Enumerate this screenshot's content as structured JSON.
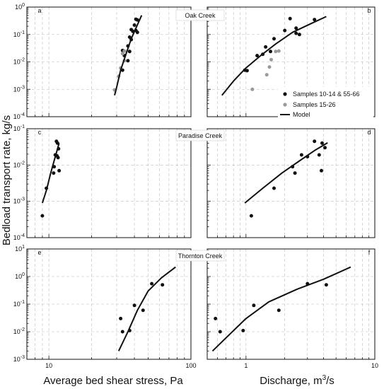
{
  "figure": {
    "ylabel": "Bedload transport rate, kg/s",
    "xlabel_left": "Average bed shear stress, Pa",
    "xlabel_right_prefix": "Discharge, m",
    "xlabel_right_sup": "3",
    "xlabel_right_suffix": "/s",
    "legend": [
      {
        "label": "Samples 10-14 & 55-66",
        "marker": "dot",
        "color": "#111111"
      },
      {
        "label": "Samples 15-26",
        "marker": "dot",
        "color": "#9a9a9a"
      },
      {
        "label": "Model",
        "marker": "line",
        "color": "#111111"
      }
    ]
  },
  "chart_data": [
    {
      "id": "a",
      "panel_letter": "a",
      "creek": "",
      "type": "scatter",
      "xscale": "log",
      "yscale": "log",
      "xlim": [
        7,
        100
      ],
      "ylim": [
        0.0001,
        1
      ],
      "xticklabels": [],
      "yticklabels": [
        "10^0",
        "10^-1",
        "10^-2",
        "10^-3",
        "10^-4"
      ],
      "series": [
        {
          "name": "Samples 10-14 & 55-66",
          "color": "#111111",
          "points": [
            [
              41,
              0.36
            ],
            [
              42,
              0.34
            ],
            [
              40,
              0.22
            ],
            [
              39,
              0.13
            ],
            [
              41,
              0.14
            ],
            [
              42,
              0.12
            ],
            [
              38,
              0.15
            ],
            [
              37,
              0.08
            ],
            [
              38,
              0.065
            ],
            [
              36,
              0.038
            ],
            [
              34,
              0.017
            ],
            [
              33,
              0.026
            ],
            [
              37,
              0.024
            ],
            [
              36,
              0.011
            ],
            [
              33,
              0.005
            ]
          ]
        },
        {
          "name": "Samples 15-26",
          "color": "#9a9a9a",
          "points": [
            [
              29,
              0.00095
            ],
            [
              31,
              0.003
            ],
            [
              32,
              0.006
            ],
            [
              34,
              0.025
            ],
            [
              33,
              0.02
            ],
            [
              34,
              0.011
            ]
          ]
        },
        {
          "name": "Model",
          "type": "line",
          "color": "#111111",
          "points": [
            [
              29,
              0.0006
            ],
            [
              30,
              0.0012
            ],
            [
              32,
              0.005
            ],
            [
              35,
              0.02
            ],
            [
              38,
              0.07
            ],
            [
              41,
              0.17
            ],
            [
              45,
              0.5
            ]
          ]
        }
      ]
    },
    {
      "id": "b",
      "panel_letter": "b",
      "creek": "Oak Creek",
      "type": "scatter",
      "xscale": "log",
      "yscale": "log",
      "xlim": [
        0.5,
        10
      ],
      "ylim": [
        0.0001,
        1
      ],
      "xticklabels": [],
      "yticklabels": [],
      "series": [
        {
          "name": "Samples 10-14 & 55-66",
          "color": "#111111",
          "points": [
            [
              0.98,
              0.005
            ],
            [
              1.02,
              0.0048
            ],
            [
              1.22,
              0.017
            ],
            [
              1.35,
              0.019
            ],
            [
              1.42,
              0.035
            ],
            [
              1.55,
              0.024
            ],
            [
              1.65,
              0.07
            ],
            [
              2.0,
              0.14
            ],
            [
              2.2,
              0.38
            ],
            [
              2.45,
              0.17
            ],
            [
              2.45,
              0.11
            ],
            [
              2.6,
              0.1
            ],
            [
              3.4,
              0.35
            ]
          ]
        },
        {
          "name": "Samples 15-26",
          "color": "#9a9a9a",
          "points": [
            [
              1.12,
              0.001
            ],
            [
              1.45,
              0.0034
            ],
            [
              1.52,
              0.0065
            ],
            [
              1.57,
              0.012
            ],
            [
              1.7,
              0.024
            ],
            [
              1.8,
              0.025
            ]
          ]
        },
        {
          "name": "Model",
          "type": "line",
          "color": "#111111",
          "points": [
            [
              0.65,
              0.0006
            ],
            [
              0.8,
              0.002
            ],
            [
              1.0,
              0.006
            ],
            [
              1.3,
              0.017
            ],
            [
              1.7,
              0.045
            ],
            [
              2.3,
              0.12
            ],
            [
              3.2,
              0.25
            ],
            [
              4.2,
              0.45
            ]
          ]
        }
      ]
    },
    {
      "id": "c",
      "panel_letter": "c",
      "creek": "",
      "type": "scatter",
      "xscale": "log",
      "yscale": "log",
      "xlim": [
        7,
        100
      ],
      "ylim": [
        0.0001,
        0.1
      ],
      "xticklabels": [],
      "yticklabels": [
        "10^-1",
        "10^-2",
        "10^-3",
        "10^-4"
      ],
      "series": [
        {
          "name": "Samples 10-14 & 55-66",
          "color": "#111111",
          "points": [
            [
              11.3,
              0.045
            ],
            [
              11.5,
              0.04
            ],
            [
              11.7,
              0.028
            ],
            [
              11.1,
              0.019
            ],
            [
              11.4,
              0.018
            ],
            [
              11.6,
              0.016
            ],
            [
              10.9,
              0.009
            ],
            [
              10.8,
              0.006
            ],
            [
              11.8,
              0.007
            ],
            [
              9.6,
              0.0023
            ],
            [
              9.0,
              0.0004
            ]
          ]
        },
        {
          "name": "Model",
          "type": "line",
          "color": "#111111",
          "points": [
            [
              9.0,
              0.0009
            ],
            [
              9.6,
              0.002
            ],
            [
              10.3,
              0.006
            ],
            [
              11.0,
              0.015
            ],
            [
              11.8,
              0.04
            ]
          ]
        }
      ]
    },
    {
      "id": "d",
      "panel_letter": "d",
      "creek": "Paradise Creek",
      "type": "scatter",
      "xscale": "log",
      "yscale": "log",
      "xlim": [
        0.5,
        10
      ],
      "ylim": [
        0.0001,
        0.1
      ],
      "xticklabels": [],
      "yticklabels": [],
      "series": [
        {
          "name": "Samples 10-14 & 55-66",
          "color": "#111111",
          "points": [
            [
              1.1,
              0.0004
            ],
            [
              1.65,
              0.0023
            ],
            [
              2.3,
              0.009
            ],
            [
              2.4,
              0.006
            ],
            [
              2.7,
              0.019
            ],
            [
              3.0,
              0.017
            ],
            [
              3.4,
              0.045
            ],
            [
              3.7,
              0.019
            ],
            [
              3.9,
              0.04
            ],
            [
              4.1,
              0.03
            ],
            [
              3.85,
              0.007
            ]
          ]
        },
        {
          "name": "Model",
          "type": "line",
          "color": "#111111",
          "points": [
            [
              0.98,
              0.0009
            ],
            [
              1.35,
              0.0023
            ],
            [
              1.9,
              0.006
            ],
            [
              2.6,
              0.013
            ],
            [
              3.4,
              0.025
            ],
            [
              4.3,
              0.041
            ]
          ]
        }
      ]
    },
    {
      "id": "e",
      "panel_letter": "e",
      "creek": "",
      "type": "scatter",
      "xscale": "log",
      "yscale": "log",
      "xlim": [
        7,
        100
      ],
      "ylim": [
        0.001,
        10
      ],
      "xticklabels": [
        "10",
        "100"
      ],
      "yticklabels": [
        "10^1",
        "10^0",
        "10^-1",
        "10^-2",
        "10^-3"
      ],
      "series": [
        {
          "name": "Samples 10-14 & 55-66",
          "color": "#111111",
          "points": [
            [
              32,
              0.03
            ],
            [
              33,
              0.01
            ],
            [
              37,
              0.011
            ],
            [
              40,
              0.09
            ],
            [
              46,
              0.06
            ],
            [
              53,
              0.55
            ],
            [
              63,
              0.5
            ]
          ]
        },
        {
          "name": "Model",
          "type": "line",
          "color": "#111111",
          "points": [
            [
              31,
              0.002
            ],
            [
              36,
              0.01
            ],
            [
              42,
              0.06
            ],
            [
              50,
              0.3
            ],
            [
              62,
              0.9
            ],
            [
              78,
              2.2
            ]
          ]
        }
      ]
    },
    {
      "id": "f",
      "panel_letter": "f",
      "creek": "Thornton Creek",
      "type": "scatter",
      "xscale": "log",
      "yscale": "log",
      "xlim": [
        0.5,
        10
      ],
      "ylim": [
        0.001,
        10
      ],
      "xticklabels": [
        "1",
        "10"
      ],
      "yticklabels": [],
      "series": [
        {
          "name": "Samples 10-14 & 55-66",
          "color": "#111111",
          "points": [
            [
              0.58,
              0.03
            ],
            [
              0.63,
              0.01
            ],
            [
              0.95,
              0.011
            ],
            [
              1.15,
              0.09
            ],
            [
              1.8,
              0.06
            ],
            [
              3.0,
              0.55
            ],
            [
              4.2,
              0.5
            ]
          ]
        },
        {
          "name": "Model",
          "type": "line",
          "color": "#111111",
          "points": [
            [
              0.55,
              0.002
            ],
            [
              0.7,
              0.006
            ],
            [
              1.0,
              0.03
            ],
            [
              1.5,
              0.12
            ],
            [
              2.5,
              0.35
            ],
            [
              4.0,
              0.8
            ],
            [
              6.5,
              2.2
            ]
          ]
        }
      ]
    }
  ]
}
